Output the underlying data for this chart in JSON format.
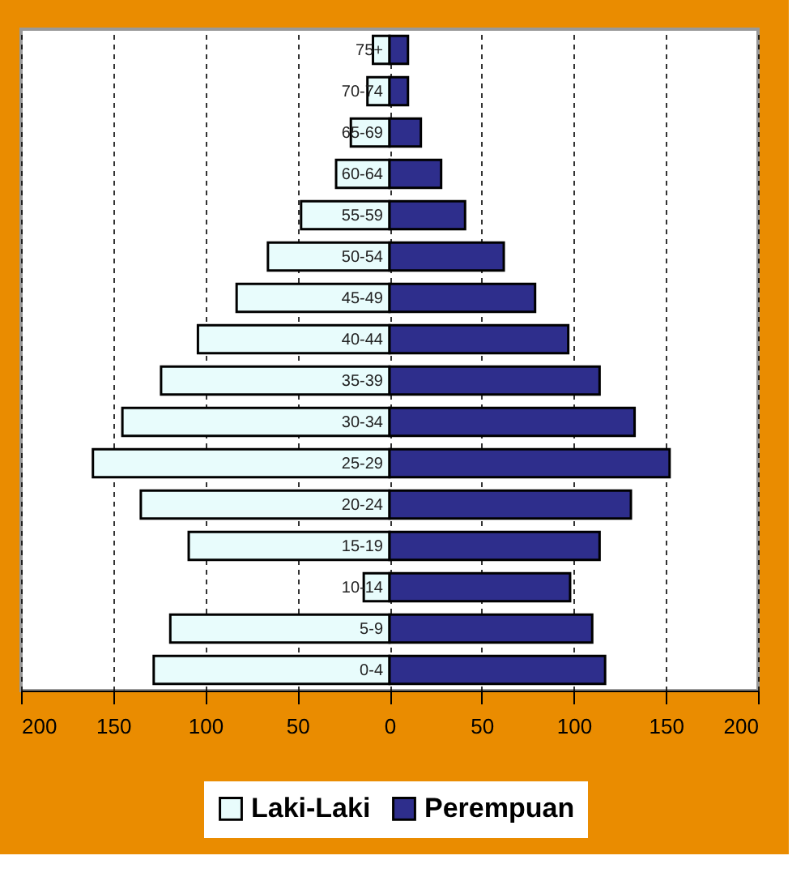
{
  "chart_data": {
    "type": "bar",
    "orientation": "horizontal",
    "categories": [
      "75+",
      "70-74",
      "65-69",
      "60-64",
      "55-59",
      "50-54",
      "45-49",
      "40-44",
      "35-39",
      "30-34",
      "25-29",
      "20-24",
      "15-19",
      "10-14",
      "5-9",
      "0-4"
    ],
    "series": [
      {
        "name": "Laki-Laki",
        "color": "#e8fcfc",
        "values": [
          -9,
          -12,
          -21,
          -29,
          -48,
          -66,
          -83,
          -104,
          -124,
          -145,
          -161,
          -135,
          -109,
          -14,
          -119,
          -128
        ]
      },
      {
        "name": "Perempuan",
        "color": "#2e2e8c",
        "values": [
          10,
          10,
          17,
          28,
          41,
          62,
          79,
          97,
          114,
          133,
          152,
          131,
          114,
          98,
          110,
          117
        ]
      }
    ],
    "xlim": [
      -200,
      200
    ],
    "xticks": [
      {
        "value": -200,
        "label": "200"
      },
      {
        "value": -150,
        "label": "150"
      },
      {
        "value": -100,
        "label": "100"
      },
      {
        "value": -50,
        "label": "50"
      },
      0,
      50,
      100,
      150,
      200
    ],
    "stacked": true,
    "grid": "x",
    "legend": "bottom"
  }
}
